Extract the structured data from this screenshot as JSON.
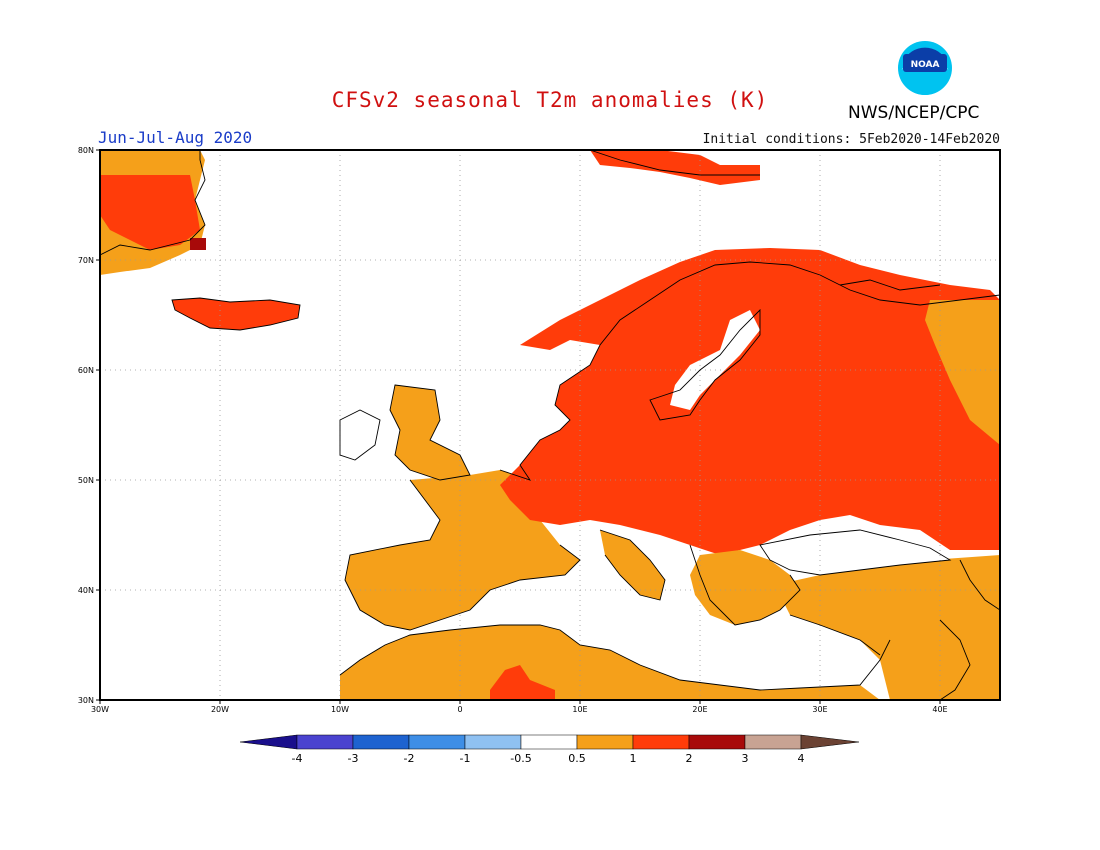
{
  "header": {
    "title": "CFSv2 seasonal T2m anomalies (K)",
    "agency": "NWS/NCEP/CPC",
    "logo_text": "NOAA",
    "season": "Jun-Jul-Aug 2020",
    "initial_conditions": "Initial conditions: 5Feb2020-14Feb2020"
  },
  "map": {
    "lon_range": [
      -30,
      45
    ],
    "lat_range": [
      30,
      80
    ],
    "lon_ticks": [
      "30W",
      "20W",
      "10W",
      "0",
      "10E",
      "20E",
      "30E",
      "40E"
    ],
    "lat_ticks": [
      "30N",
      "40N",
      "50N",
      "60N",
      "70N",
      "80N"
    ],
    "grid": "dotted"
  },
  "colorbar": {
    "bins": [
      {
        "label": "-4",
        "color": "#1a0f8c"
      },
      {
        "label": "-3",
        "color": "#4a43cf"
      },
      {
        "label": "-2",
        "color": "#1e63d0"
      },
      {
        "label": "-1",
        "color": "#3e8ee6"
      },
      {
        "label": "-0.5",
        "color": "#8fc1f2"
      },
      {
        "label": "0.5",
        "color": "#ffffff"
      },
      {
        "label": "1",
        "color": "#f5a01a"
      },
      {
        "label": "2",
        "color": "#ff3c0a"
      },
      {
        "label": "3",
        "color": "#a80a0a"
      },
      {
        "label": "4",
        "color": "#c8a393"
      }
    ],
    "high_color": "#6b4233"
  },
  "chart_data": {
    "type": "heatmap",
    "title": "CFSv2 seasonal T2m anomalies (K)",
    "legend": [
      "-4",
      "-3",
      "-2",
      "-1",
      "-0.5",
      "0.5",
      "1",
      "2",
      "3",
      "4"
    ],
    "regions": [
      {
        "name": "Greenland",
        "lon": [
          -30,
          -22
        ],
        "lat": [
          70,
          80
        ],
        "value": 1.5
      },
      {
        "name": "Iceland",
        "lon": [
          -24,
          -13
        ],
        "lat": [
          63,
          67
        ],
        "value": 1.5
      },
      {
        "name": "Scandinavia",
        "lon": [
          5,
          30
        ],
        "lat": [
          56,
          71
        ],
        "value": 1.5
      },
      {
        "name": "Northwest Russia",
        "lon": [
          30,
          45
        ],
        "lat": [
          48,
          70
        ],
        "value": 1.5
      },
      {
        "name": "Central Europe",
        "lon": [
          6,
          30
        ],
        "lat": [
          45,
          55
        ],
        "value": 1.5
      },
      {
        "name": "British Isles",
        "lon": [
          -10,
          2
        ],
        "lat": [
          50,
          59
        ],
        "value": 0.75
      },
      {
        "name": "France",
        "lon": [
          -5,
          6
        ],
        "lat": [
          43,
          51
        ],
        "value": 0.75
      },
      {
        "name": "Iberia",
        "lon": [
          -9,
          3
        ],
        "lat": [
          36,
          44
        ],
        "value": 0.75
      },
      {
        "name": "North Africa",
        "lon": [
          -10,
          15
        ],
        "lat": [
          30,
          35
        ],
        "value": 0.75
      },
      {
        "name": "Turkey",
        "lon": [
          26,
          45
        ],
        "lat": [
          36,
          42
        ],
        "value": 0.75
      },
      {
        "name": "Mediterranean Sea",
        "lon": [
          3,
          28
        ],
        "lat": [
          34,
          41
        ],
        "value": 0.0
      }
    ]
  }
}
